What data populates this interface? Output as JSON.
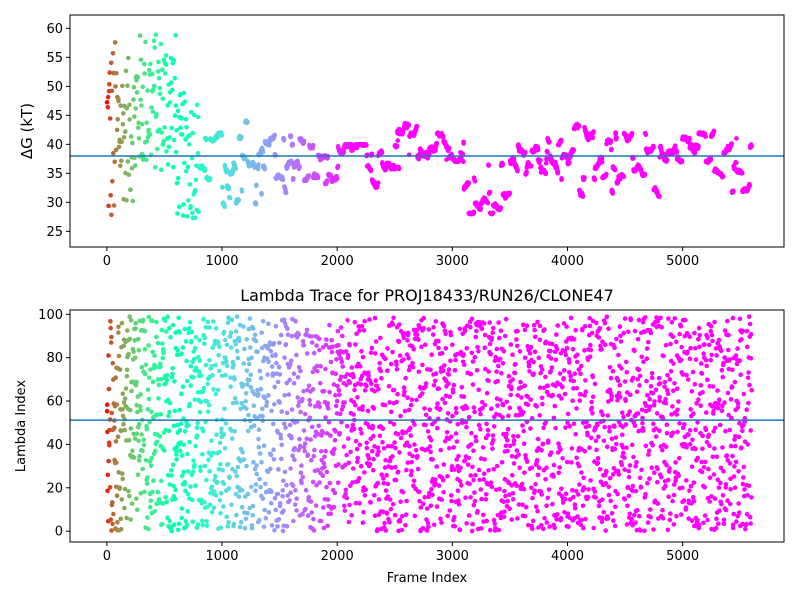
{
  "chart_data": [
    {
      "type": "scatter",
      "title": "",
      "xlabel": "",
      "ylabel": "ΔG (kT)",
      "xlim": [
        -320,
        5880
      ],
      "ylim": [
        22.3,
        62.3
      ],
      "xticks": [
        0,
        1000,
        2000,
        3000,
        4000,
        5000
      ],
      "yticks": [
        25,
        30,
        35,
        40,
        45,
        50,
        55,
        60
      ],
      "hline": 38.0,
      "hline_color": "#1f77b4",
      "colormap": "rainbow (frame index: red at start, purple at end)",
      "regimes": [
        {
          "x": [
            0,
            30
          ],
          "y": [
            23,
            60
          ]
        },
        {
          "x": [
            30,
            100
          ],
          "y": [
            24,
            58.5
          ]
        },
        {
          "x": [
            100,
            250
          ],
          "y": [
            30,
            55
          ]
        },
        {
          "x": [
            250,
            600
          ],
          "y": [
            35,
            59.5
          ]
        },
        {
          "x": [
            600,
            800
          ],
          "y": [
            27,
            49
          ]
        },
        {
          "x": [
            800,
            1000
          ],
          "y": [
            30,
            42
          ]
        },
        {
          "x": [
            1000,
            1100
          ],
          "y": [
            27.5,
            38
          ]
        },
        {
          "x": [
            1100,
            1300
          ],
          "y": [
            29,
            45
          ]
        },
        {
          "x": [
            1300,
            1600
          ],
          "y": [
            31,
            42
          ]
        },
        {
          "x": [
            1600,
            2000
          ],
          "y": [
            33,
            41
          ]
        },
        {
          "x": [
            2000,
            2500
          ],
          "y": [
            32,
            40
          ]
        },
        {
          "x": [
            2500,
            2800
          ],
          "y": [
            35,
            44
          ]
        },
        {
          "x": [
            2800,
            3100
          ],
          "y": [
            37,
            42
          ]
        },
        {
          "x": [
            3100,
            3500
          ],
          "y": [
            28,
            37
          ]
        },
        {
          "x": [
            3500,
            4000
          ],
          "y": [
            33,
            41
          ]
        },
        {
          "x": [
            4000,
            4300
          ],
          "y": [
            30,
            43.5
          ]
        },
        {
          "x": [
            4300,
            4800
          ],
          "y": [
            31,
            43
          ]
        },
        {
          "x": [
            4800,
            5200
          ],
          "y": [
            36,
            42
          ]
        },
        {
          "x": [
            5200,
            5600
          ],
          "y": [
            31,
            43
          ]
        }
      ]
    },
    {
      "type": "scatter",
      "title": "Lambda Trace for PROJ18433/RUN26/CLONE47",
      "xlabel": "Frame Index",
      "ylabel": "Lambda Index",
      "xlim": [
        -320,
        5880
      ],
      "ylim": [
        -5,
        102
      ],
      "xticks": [
        0,
        1000,
        2000,
        3000,
        4000,
        5000
      ],
      "yticks": [
        0,
        20,
        40,
        60,
        80,
        100
      ],
      "hline": 51.2,
      "hline_color": "#1f77b4",
      "colormap": "rainbow (frame index: red at start, purple at end)",
      "x_range": [
        0,
        5600
      ],
      "y_range": [
        0,
        99
      ]
    }
  ]
}
